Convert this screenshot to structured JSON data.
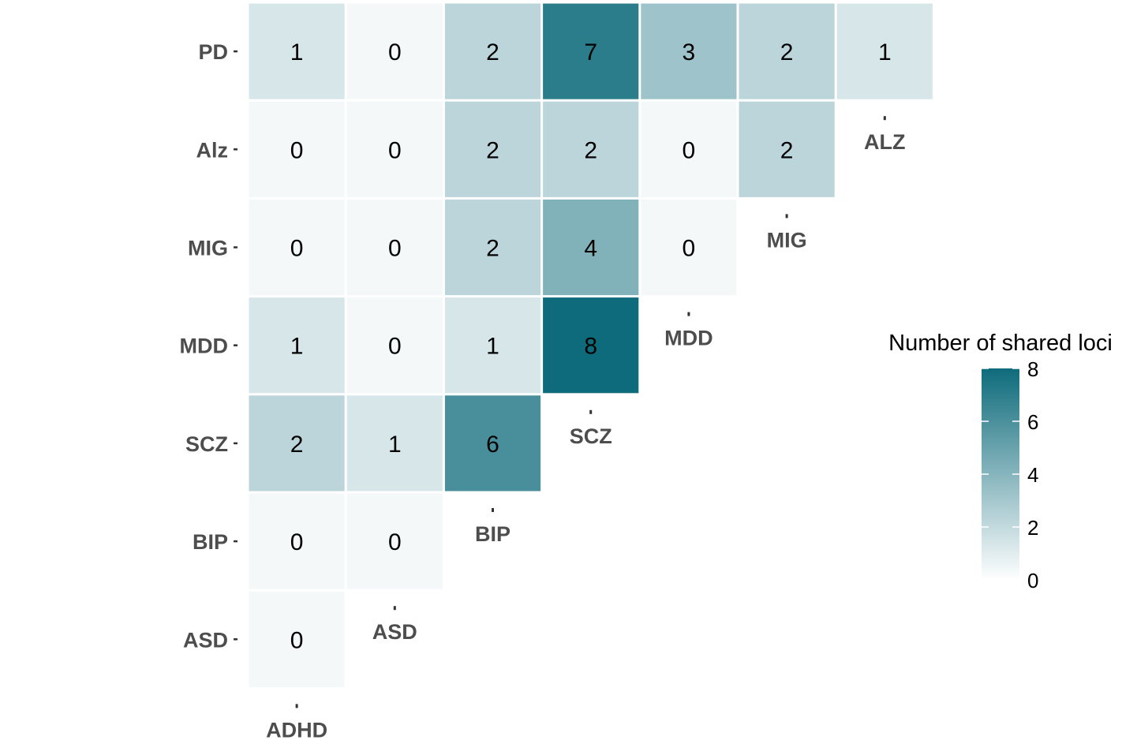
{
  "chart_data": {
    "type": "heatmap",
    "row_labels": [
      "PD",
      "Alz",
      "MIG",
      "MDD",
      "SCZ",
      "BIP",
      "ASD"
    ],
    "diagonal_labels": [
      "ADHD",
      "ASD",
      "BIP",
      "SCZ",
      "MDD",
      "MIG",
      "ALZ"
    ],
    "values": [
      [
        1,
        0,
        2,
        7,
        3,
        2,
        1
      ],
      [
        0,
        0,
        2,
        2,
        0,
        2
      ],
      [
        0,
        0,
        2,
        4,
        0
      ],
      [
        1,
        0,
        1,
        8
      ],
      [
        2,
        1,
        6
      ],
      [
        0,
        0
      ],
      [
        0
      ]
    ],
    "legend": {
      "title": "Number of shared loci",
      "ticks": [
        "0",
        "2",
        "4",
        "6",
        "8"
      ],
      "range": [
        0,
        8
      ],
      "low_color": "#ffffff",
      "high_color": "#0e6b7b"
    },
    "grid": false
  }
}
